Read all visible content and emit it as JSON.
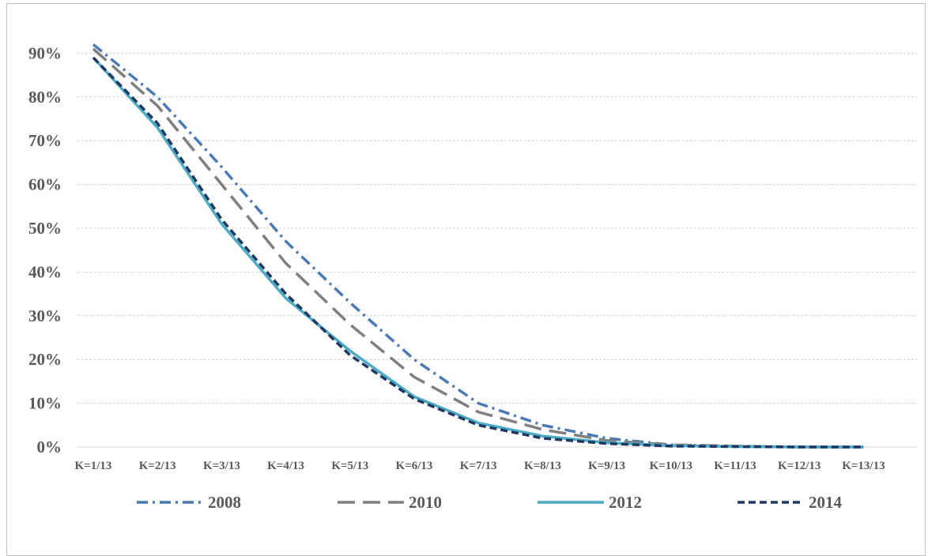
{
  "chart_data": {
    "type": "line",
    "title": "",
    "xlabel": "",
    "ylabel": "",
    "categories": [
      "K=1/13",
      "K=2/13",
      "K=3/13",
      "K=4/13",
      "K=5/13",
      "K=6/13",
      "K=7/13",
      "K=8/13",
      "K=9/13",
      "K=10/13",
      "K=11/13",
      "K=12/13",
      "K=13/13"
    ],
    "yticks": [
      "0%",
      "10%",
      "20%",
      "30%",
      "40%",
      "50%",
      "60%",
      "70%",
      "80%",
      "90%"
    ],
    "ylim": [
      0,
      0.95
    ],
    "grid": true,
    "legend_position": "bottom",
    "series": [
      {
        "name": "2008",
        "color": "#4a7ab5",
        "dash": "dash-dot",
        "values": [
          0.92,
          0.8,
          0.64,
          0.47,
          0.33,
          0.2,
          0.1,
          0.05,
          0.02,
          0.005,
          0.002,
          0.0,
          0.0
        ]
      },
      {
        "name": "2010",
        "color": "#7f7f7f",
        "dash": "long-dash",
        "values": [
          0.91,
          0.78,
          0.6,
          0.42,
          0.28,
          0.16,
          0.08,
          0.04,
          0.015,
          0.005,
          0.002,
          0.0,
          0.0
        ]
      },
      {
        "name": "2012",
        "color": "#4bacc6",
        "dash": "solid",
        "values": [
          0.89,
          0.73,
          0.51,
          0.34,
          0.22,
          0.115,
          0.055,
          0.025,
          0.01,
          0.003,
          0.001,
          0.0,
          0.0
        ]
      },
      {
        "name": "2014",
        "color": "#1f3864",
        "dash": "short-dash",
        "values": [
          0.89,
          0.74,
          0.52,
          0.35,
          0.21,
          0.11,
          0.05,
          0.02,
          0.008,
          0.002,
          0.001,
          0.0,
          0.0
        ]
      }
    ]
  }
}
